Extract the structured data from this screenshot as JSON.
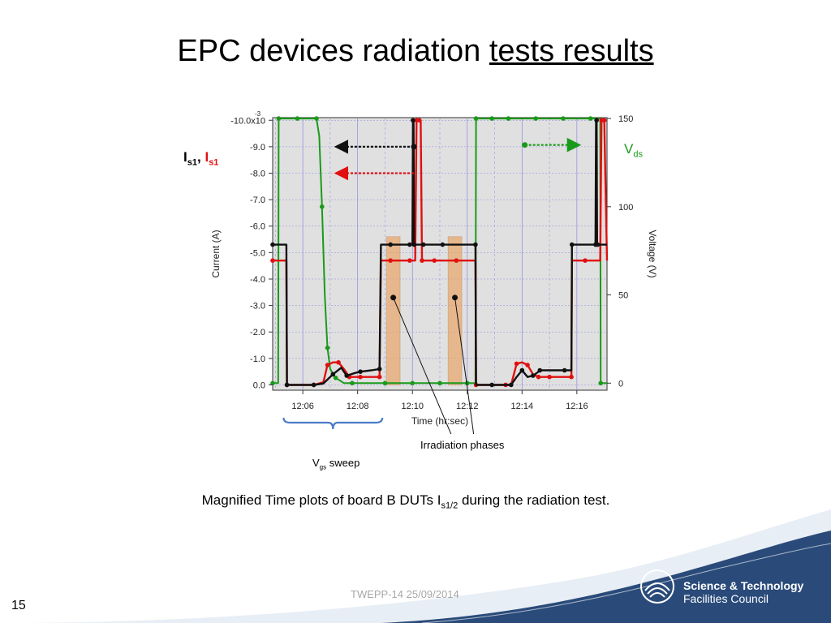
{
  "slide": {
    "title_part1": "EPC devices radiation ",
    "title_part2": "tests results",
    "page_number": "15",
    "footer": "TWEPP-14 25/09/2014",
    "caption_before": "Magnified Time plots of board B DUTs I",
    "caption_sub": "s1/2",
    "caption_after": " during the radiation test.",
    "logo_line1": "Science & Technology",
    "logo_line2": "Facilities Council"
  },
  "annotations": {
    "is_label_a": "I",
    "is_label_a_sub": "s1",
    "is_sep": ",",
    "is_label_b": "I",
    "is_label_b_sub": "s1",
    "vds_label": "V",
    "vds_sub": "ds",
    "irradiation": "Irradiation phases",
    "vgs_label": "V",
    "vgs_sub": "gs",
    "vgs_text": " sweep"
  },
  "colors": {
    "black_series": "#111111",
    "red_series": "#e01010",
    "green_series": "#1a9a1a",
    "plot_bg": "#e0e0e0",
    "irradiation_shade": "#e8a870",
    "brace": "#4a7cc8"
  },
  "chart_data": {
    "type": "line",
    "xlabel": "Time (hr:sec)",
    "ylabel_left": "Current (A)",
    "ylabel_right": "Voltage (V)",
    "x_ticks": [
      "12:06",
      "12:08",
      "12:10",
      "12:12",
      "12:14",
      "12:16"
    ],
    "x_tick_values": [
      6,
      8,
      10,
      12,
      14,
      16
    ],
    "xlim": [
      4.9,
      17.1
    ],
    "y_left_ticks": [
      "-10.0x10",
      "-9.0",
      "-8.0",
      "-7.0",
      "-6.0",
      "-5.0",
      "-4.0",
      "-3.0",
      "-2.0",
      "-1.0",
      "0.0"
    ],
    "y_left_values": [
      -10,
      -9,
      -8,
      -7,
      -6,
      -5,
      -4,
      -3,
      -2,
      -1,
      0
    ],
    "y_left_exponent": "-3",
    "y_left_lim": [
      0.2,
      -10.1
    ],
    "y_right_ticks": [
      "150",
      "100",
      "50",
      "0"
    ],
    "y_right_values": [
      150,
      100,
      50,
      0
    ],
    "y_right_lim": [
      -4,
      150.5
    ],
    "grid": true,
    "irradiation_phases": [
      [
        9.05,
        9.55
      ],
      [
        11.3,
        11.8
      ]
    ],
    "series": [
      {
        "color": "black",
        "axis": "left",
        "x": [
          4.9,
          5.4,
          5.42,
          5.9,
          6.4,
          6.75,
          7.1,
          7.4,
          7.6,
          7.9,
          8.1,
          8.5,
          8.8,
          8.85,
          9.2,
          9.6,
          9.9,
          10.0,
          10.02,
          10.04,
          10.06,
          10.08,
          10.4,
          10.8,
          11.1,
          11.6,
          12.3,
          12.32,
          12.9,
          13.4,
          13.6,
          13.8,
          14.0,
          14.2,
          14.4,
          14.6,
          14.65,
          15.0,
          15.55,
          15.8,
          15.82,
          16.3,
          16.68,
          16.7,
          16.72,
          16.74,
          16.76,
          17.1
        ],
        "y": [
          -5.3,
          -5.3,
          0.0,
          0.0,
          0.0,
          -0.05,
          -0.4,
          -0.65,
          -0.35,
          -0.45,
          -0.5,
          -0.55,
          -0.6,
          -5.3,
          -5.3,
          -5.3,
          -5.3,
          -5.3,
          -10.0,
          -10.0,
          -5.3,
          -5.3,
          -5.3,
          -5.3,
          -5.3,
          -5.3,
          -5.3,
          0.0,
          0.0,
          0.0,
          0.0,
          -0.3,
          -0.55,
          -0.3,
          -0.35,
          -0.5,
          -0.55,
          -0.55,
          -0.55,
          -0.55,
          -5.3,
          -5.3,
          -5.3,
          -10.0,
          -10.0,
          -5.3,
          -5.3,
          -5.3
        ]
      },
      {
        "color": "red",
        "axis": "left",
        "x": [
          4.9,
          5.4,
          5.42,
          5.9,
          6.4,
          6.75,
          6.9,
          7.1,
          7.3,
          7.5,
          7.7,
          7.9,
          8.1,
          8.5,
          8.8,
          8.85,
          9.2,
          9.6,
          9.9,
          10.1,
          10.15,
          10.2,
          10.25,
          10.3,
          10.35,
          10.4,
          10.8,
          11.1,
          11.6,
          12.3,
          12.32,
          12.9,
          13.4,
          13.6,
          13.8,
          14.0,
          14.2,
          14.4,
          14.6,
          14.65,
          15.0,
          15.55,
          15.8,
          15.82,
          16.3,
          16.85,
          16.9,
          16.95,
          17.0,
          17.1
        ],
        "y": [
          -4.7,
          -4.7,
          0.0,
          0.0,
          0.0,
          -0.1,
          -0.75,
          -0.85,
          -0.85,
          -0.6,
          -0.3,
          -0.3,
          -0.3,
          -0.3,
          -0.3,
          -4.7,
          -4.7,
          -4.7,
          -4.7,
          -4.7,
          -10.0,
          -10.0,
          -10.0,
          -10.0,
          -4.7,
          -4.7,
          -4.7,
          -4.7,
          -4.7,
          -4.7,
          0.0,
          0.0,
          0.0,
          0.0,
          -0.8,
          -0.85,
          -0.75,
          -0.4,
          -0.3,
          -0.3,
          -0.3,
          -0.3,
          -0.3,
          -4.7,
          -4.7,
          -4.7,
          -10.0,
          -10.0,
          -10.0,
          -4.7
        ]
      },
      {
        "color": "green",
        "axis": "right",
        "x": [
          4.9,
          5.1,
          5.12,
          5.5,
          5.8,
          6.0,
          6.5,
          6.6,
          6.7,
          6.8,
          6.9,
          7.0,
          7.2,
          7.5,
          7.8,
          8.5,
          9.0,
          9.5,
          10.0,
          10.5,
          11.0,
          11.5,
          12.0,
          12.3,
          12.32,
          12.6,
          12.9,
          13.2,
          13.5,
          14.0,
          14.5,
          15.0,
          15.5,
          16.0,
          16.5,
          16.85,
          16.87,
          17.1
        ],
        "y": [
          0,
          0,
          150,
          150,
          150,
          150,
          150,
          140,
          100,
          50,
          20,
          8,
          3,
          0,
          0,
          0,
          0,
          0,
          0,
          0,
          0,
          0,
          0,
          0,
          150,
          150,
          150,
          150,
          150,
          150,
          150,
          150,
          150,
          150,
          150,
          150,
          0,
          0
        ]
      }
    ]
  }
}
